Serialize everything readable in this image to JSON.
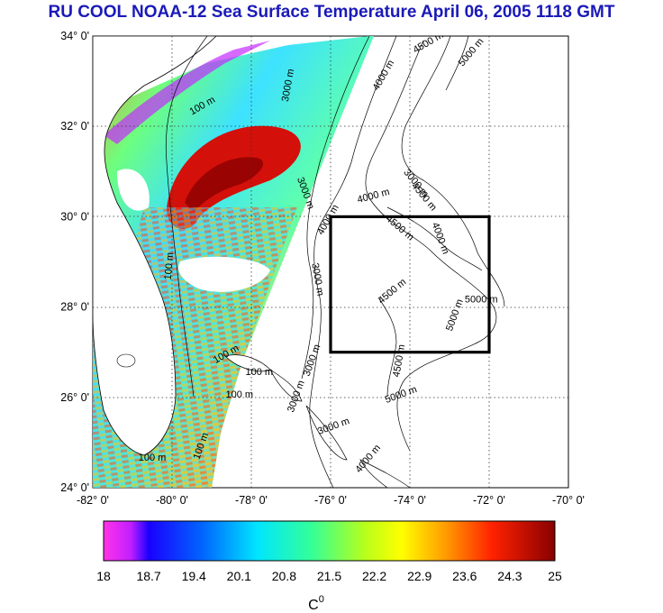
{
  "title": "RU COOL  NOAA-12 Sea Surface Temperature April 06, 2005 1118 GMT",
  "map": {
    "lat_labels": [
      "34° 0'",
      "32° 0'",
      "30° 0'",
      "28° 0'",
      "26° 0'",
      "24° 0'"
    ],
    "lon_labels": [
      "-82° 0'",
      "-80° 0'",
      "-78° 0'",
      "-76° 0'",
      "-74° 0'",
      "-72° 0'",
      "-70° 0'"
    ],
    "lat_range": [
      24,
      34
    ],
    "lon_range": [
      -82,
      -70
    ],
    "grid": true,
    "study_box": {
      "lon": [
        -76,
        -72
      ],
      "lat": [
        27,
        30
      ]
    },
    "contour_labels": [
      {
        "text": "100 m",
        "lon": -79.2,
        "lat": 32.4,
        "rot": -30
      },
      {
        "text": "3000 m",
        "lon": -77.0,
        "lat": 32.9,
        "rot": -80
      },
      {
        "text": "4000 m",
        "lon": -74.6,
        "lat": 33.1,
        "rot": -60
      },
      {
        "text": "4500 m",
        "lon": -73.5,
        "lat": 33.8,
        "rot": -30
      },
      {
        "text": "5000 m",
        "lon": -72.4,
        "lat": 33.6,
        "rot": -50
      },
      {
        "text": "3000 m",
        "lon": -76.7,
        "lat": 30.5,
        "rot": 70
      },
      {
        "text": "3000 m",
        "lon": -73.9,
        "lat": 30.7,
        "rot": 50
      },
      {
        "text": "4500 m",
        "lon": -73.7,
        "lat": 30.4,
        "rot": 50
      },
      {
        "text": "4000 m",
        "lon": -74.9,
        "lat": 30.4,
        "rot": -15
      },
      {
        "text": "4000 m",
        "lon": -73.3,
        "lat": 29.5,
        "rot": 70
      },
      {
        "text": "4500 m",
        "lon": -74.3,
        "lat": 29.7,
        "rot": 40
      },
      {
        "text": "4000 m",
        "lon": -76.0,
        "lat": 29.9,
        "rot": -60
      },
      {
        "text": "4500 m",
        "lon": -74.4,
        "lat": 28.3,
        "rot": -40
      },
      {
        "text": "5000 m",
        "lon": -72.2,
        "lat": 28.1,
        "rot": 0
      },
      {
        "text": "5000 m",
        "lon": -72.8,
        "lat": 27.8,
        "rot": -70
      },
      {
        "text": "4500 m",
        "lon": -74.2,
        "lat": 26.8,
        "rot": -80
      },
      {
        "text": "3000 m",
        "lon": -76.4,
        "lat": 28.6,
        "rot": 80
      },
      {
        "text": "100 m",
        "lon": -80.0,
        "lat": 28.9,
        "rot": -85
      },
      {
        "text": "100 m",
        "lon": -78.6,
        "lat": 26.9,
        "rot": -30
      },
      {
        "text": "100 m",
        "lon": -77.8,
        "lat": 26.5,
        "rot": 0
      },
      {
        "text": "100 m",
        "lon": -78.3,
        "lat": 26.0,
        "rot": 0
      },
      {
        "text": "3000 m",
        "lon": -76.4,
        "lat": 26.8,
        "rot": -70
      },
      {
        "text": "3000 m",
        "lon": -76.8,
        "lat": 26.0,
        "rot": -70
      },
      {
        "text": "3000 m",
        "lon": -75.9,
        "lat": 25.3,
        "rot": -20
      },
      {
        "text": "5000 m",
        "lon": -74.2,
        "lat": 26.0,
        "rot": -20
      },
      {
        "text": "4000 m",
        "lon": -75.0,
        "lat": 24.6,
        "rot": -50
      },
      {
        "text": "100 m",
        "lon": -79.2,
        "lat": 24.9,
        "rot": -70
      },
      {
        "text": "100 m",
        "lon": -80.5,
        "lat": 24.6,
        "rot": 0
      }
    ]
  },
  "colorbar": {
    "ticks": [
      "18",
      "18.7",
      "19.4",
      "20.1",
      "20.8",
      "21.5",
      "22.2",
      "22.9",
      "23.6",
      "24.3",
      "25"
    ],
    "unit": "C",
    "unit_sup": "0",
    "min": 18,
    "max": 25
  },
  "colors": {
    "title": "#1a1ab8",
    "box": "#000000"
  }
}
